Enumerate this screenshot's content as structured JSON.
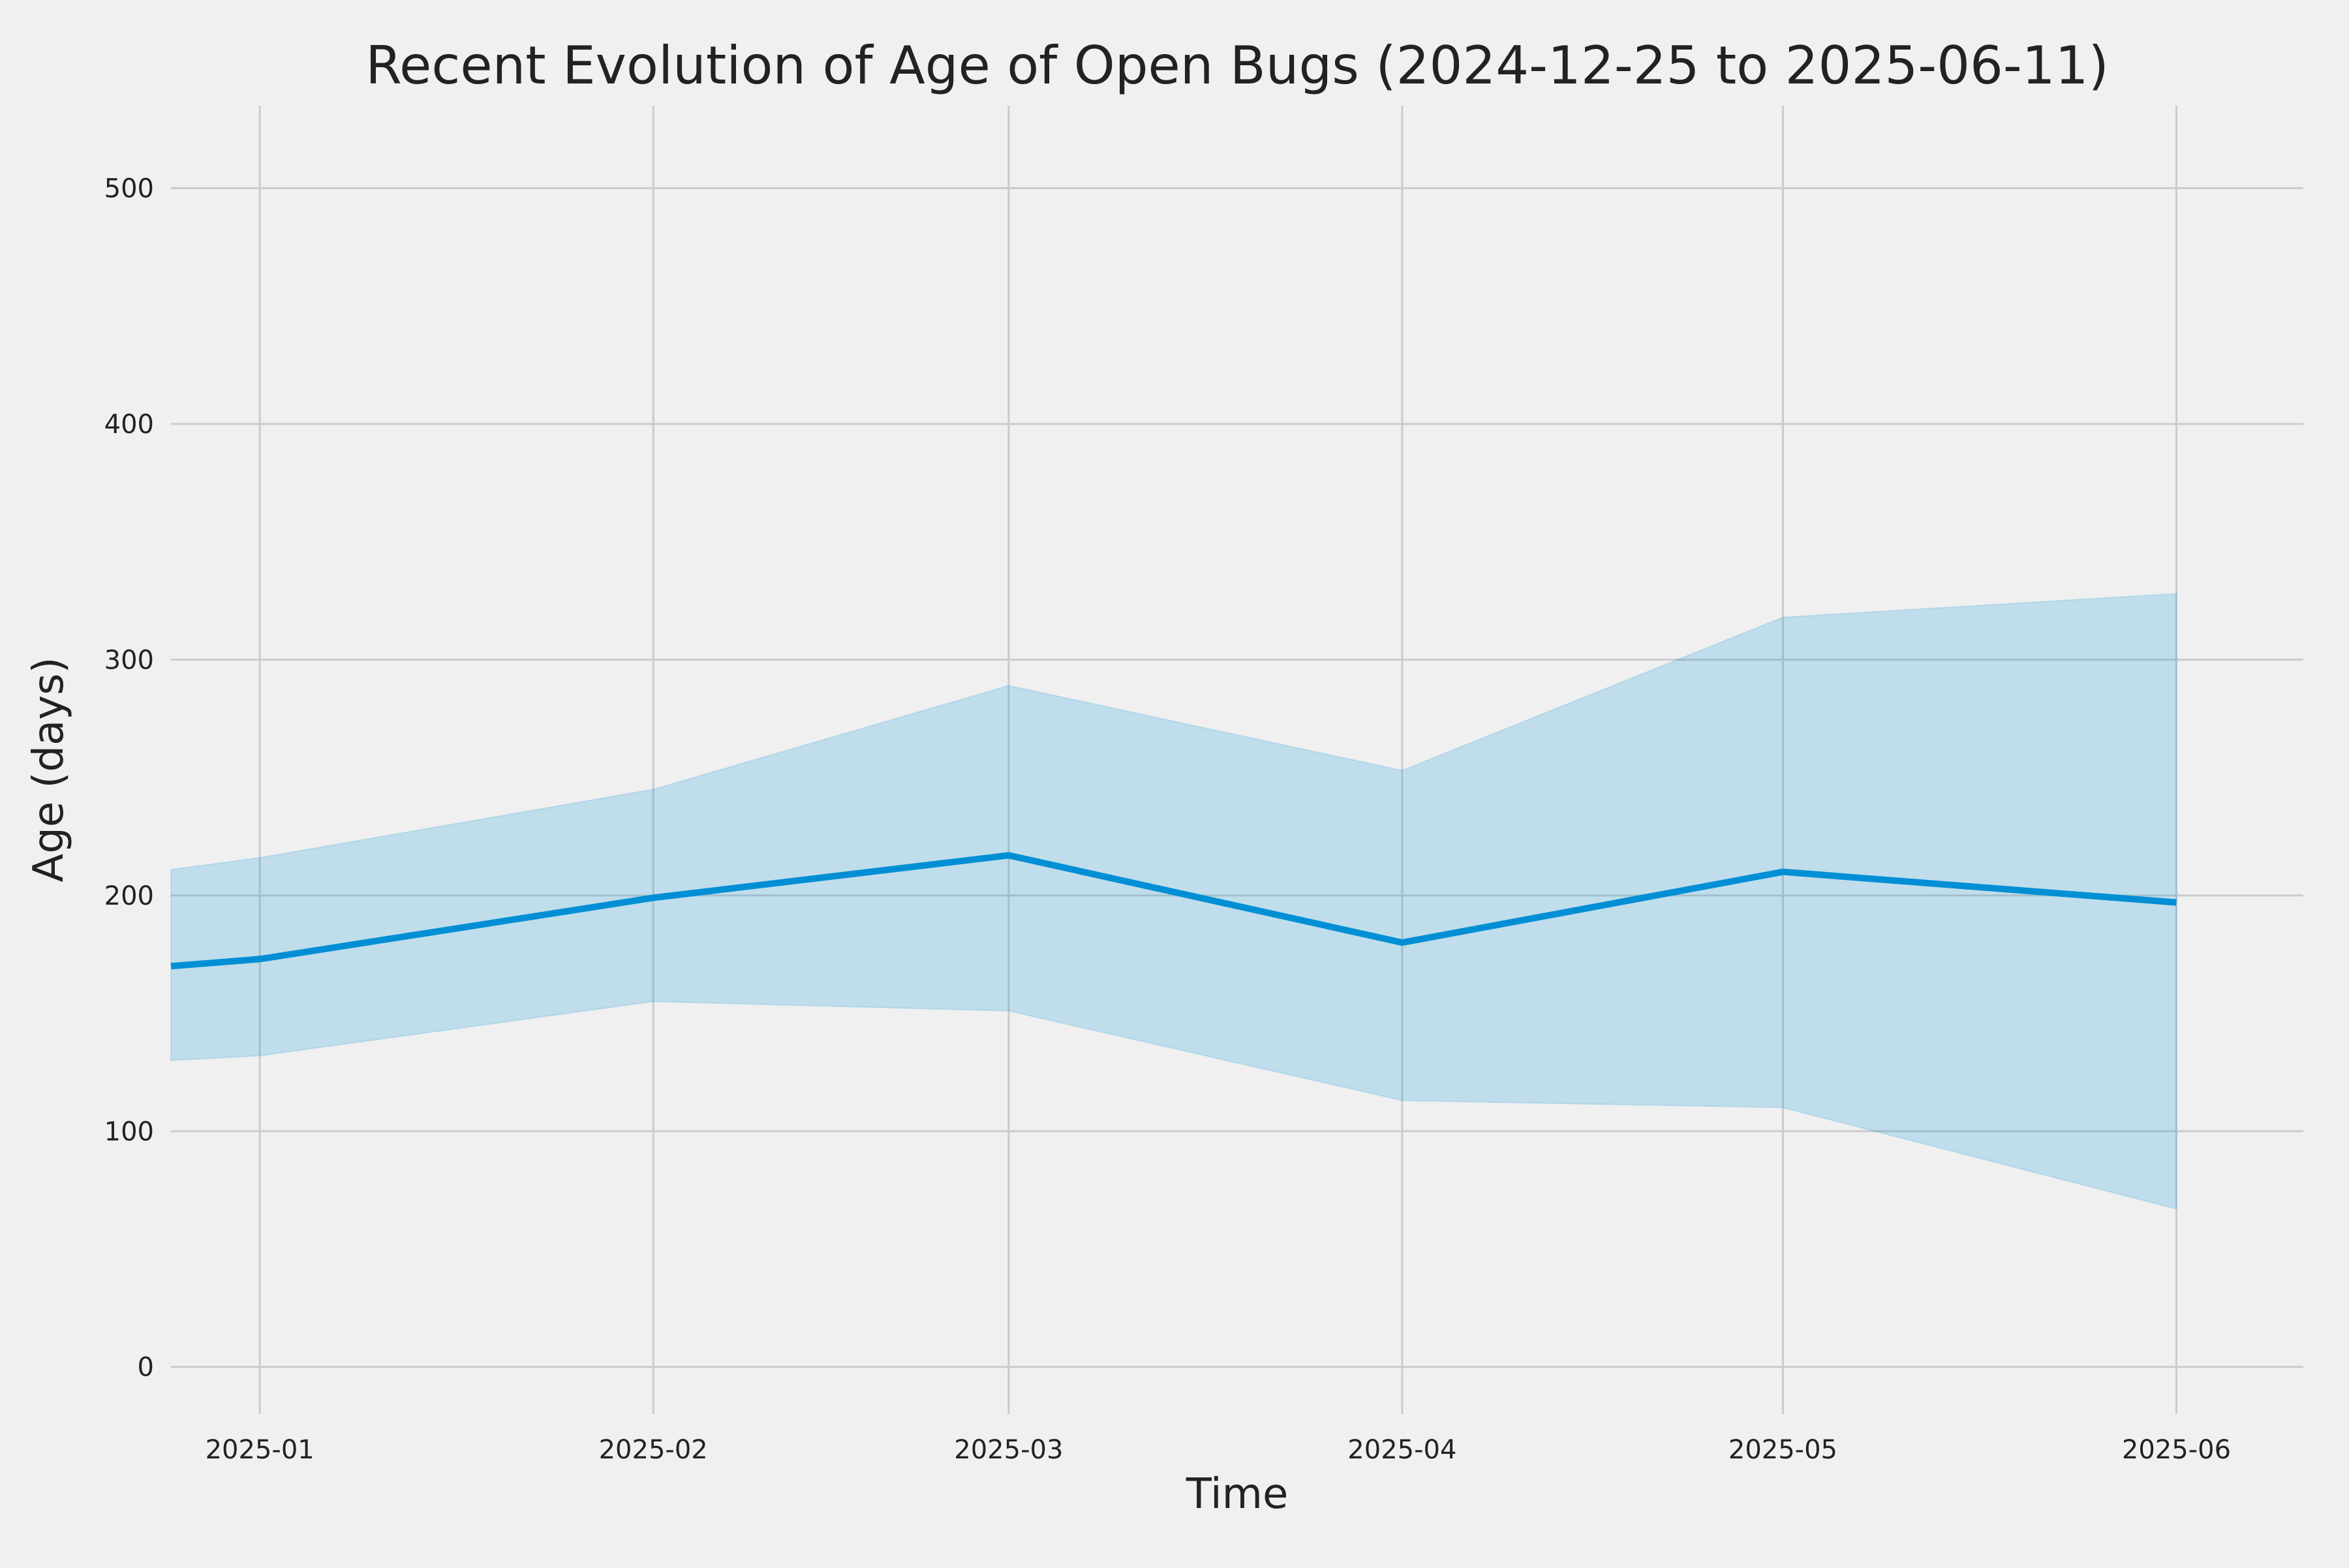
{
  "chart_data": {
    "type": "area",
    "title": "Recent Evolution of Age of Open Bugs (2024-12-25 to 2025-06-11)",
    "xlabel": "Time",
    "ylabel": "Age (days)",
    "x_ticks": [
      "2025-01",
      "2025-02",
      "2025-03",
      "2025-04",
      "2025-05",
      "2025-06"
    ],
    "y_ticks": [
      0,
      100,
      200,
      300,
      400,
      500
    ],
    "xlim": [
      "2024-12-25",
      "2025-06-11"
    ],
    "ylim": [
      -20,
      535
    ],
    "grid": true,
    "series": [
      {
        "x": [
          "2024-12-25",
          "2025-01-01",
          "2025-02-01",
          "2025-03-01",
          "2025-04-01",
          "2025-05-01",
          "2025-06-01"
        ],
        "values": [
          170,
          173,
          199,
          217,
          180,
          210,
          197
        ],
        "upper": [
          211,
          216,
          245,
          289,
          253,
          318,
          328
        ],
        "lower": [
          130,
          132,
          155,
          151,
          113,
          110,
          67
        ]
      }
    ],
    "colors": {
      "line": "#008fd5",
      "band": "#008fd5",
      "grid": "#cbcbcb",
      "background": "#f0f0f0"
    }
  }
}
